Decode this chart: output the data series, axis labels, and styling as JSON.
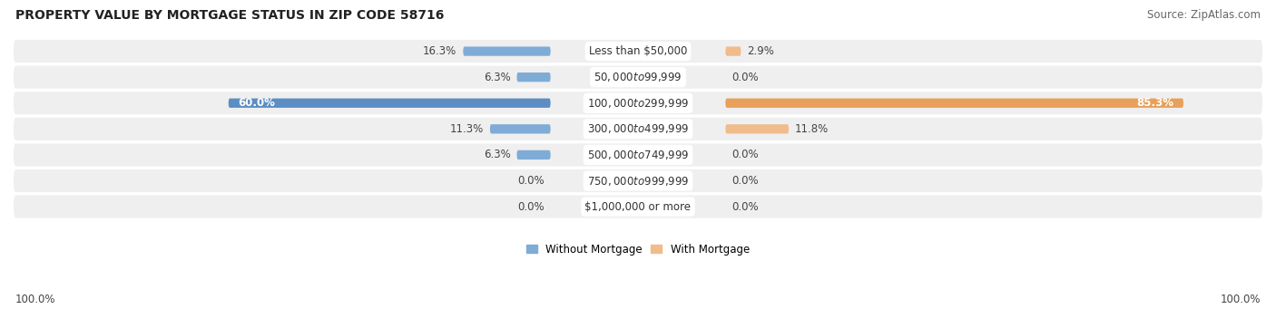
{
  "title": "PROPERTY VALUE BY MORTGAGE STATUS IN ZIP CODE 58716",
  "source": "Source: ZipAtlas.com",
  "categories": [
    "Less than $50,000",
    "$50,000 to $99,999",
    "$100,000 to $299,999",
    "$300,000 to $499,999",
    "$500,000 to $749,999",
    "$750,000 to $999,999",
    "$1,000,000 or more"
  ],
  "without_mortgage": [
    16.3,
    6.3,
    60.0,
    11.3,
    6.3,
    0.0,
    0.0
  ],
  "with_mortgage": [
    2.9,
    0.0,
    85.3,
    11.8,
    0.0,
    0.0,
    0.0
  ],
  "color_without": "#7facd6",
  "color_with": "#f0bc8c",
  "color_without_large": "#5b8ec4",
  "color_with_large": "#e8a05a",
  "bg_row_color": "#efefef",
  "max_val": 100.0,
  "title_fontsize": 10,
  "label_fontsize": 8.5,
  "source_fontsize": 8.5,
  "cat_fontsize": 8.5,
  "large_threshold": 50
}
